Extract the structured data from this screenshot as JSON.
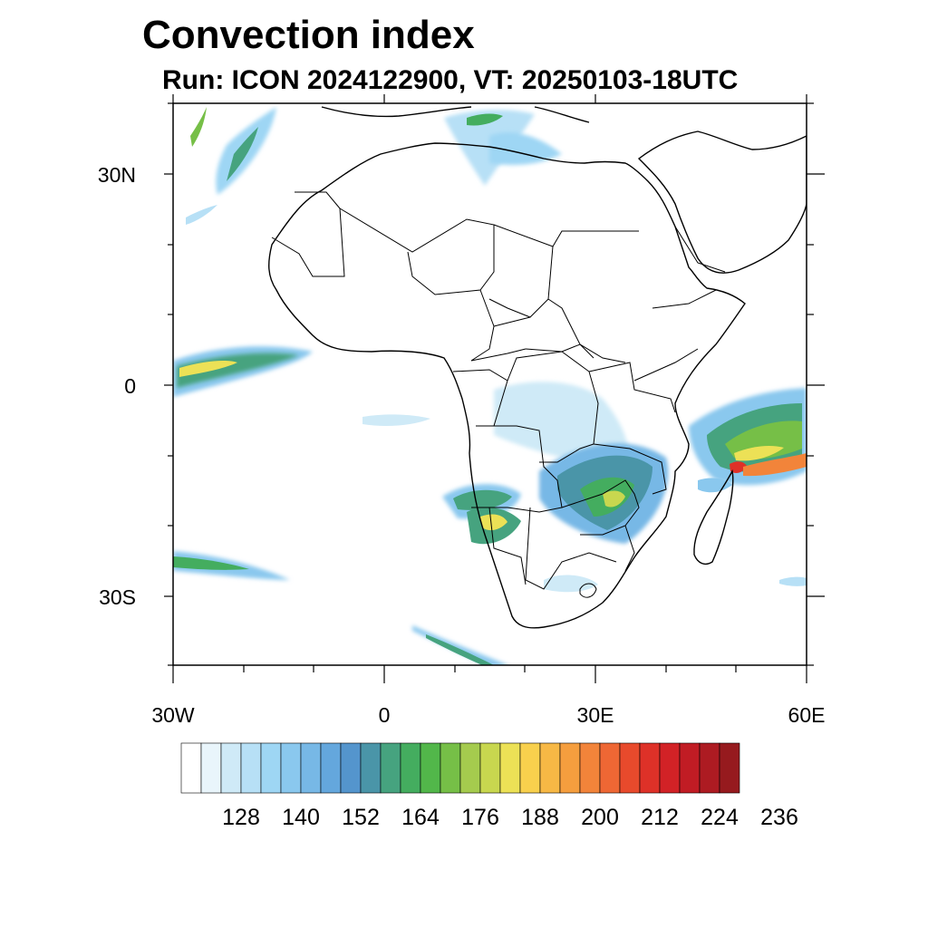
{
  "title": "Convection index",
  "subtitle": "Run: ICON 2024122900,  VT: 20250103-18UTC",
  "axes": {
    "lat_labels": [
      "30N",
      "0",
      "30S"
    ],
    "lon_labels": [
      "30W",
      "0",
      "30E",
      "60E"
    ]
  },
  "colorbar": {
    "labels": [
      "128",
      "140",
      "152",
      "164",
      "176",
      "188",
      "200",
      "212",
      "224",
      "236"
    ],
    "colors": [
      "#ffffff",
      "#e9f5fb",
      "#cfeaf7",
      "#b7e0f6",
      "#9ed6f4",
      "#8ac8ee",
      "#77b8e6",
      "#64a7dd",
      "#5495cd",
      "#4a95a8",
      "#46a37f",
      "#44ad5f",
      "#52b74a",
      "#76bf47",
      "#a5cb4e",
      "#c8d74f",
      "#ece156",
      "#f8d04d",
      "#f7b845",
      "#f59e3e",
      "#f2843a",
      "#ee6734",
      "#e84a2c",
      "#de3128",
      "#d22226",
      "#c11c24",
      "#ad1b22",
      "#961a1e"
    ]
  },
  "colors": {
    "land_outline": "#000000",
    "frame": "#000000"
  }
}
